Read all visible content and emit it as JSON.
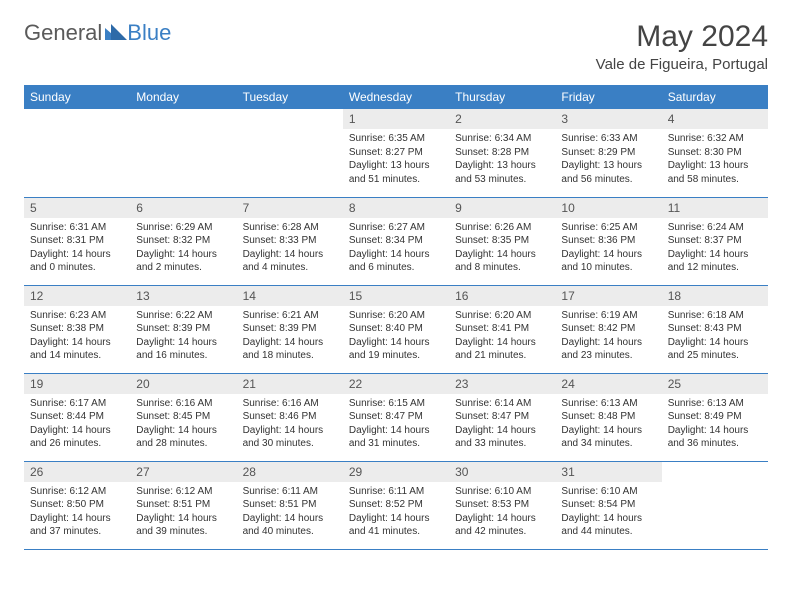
{
  "logo": {
    "text_general": "General",
    "text_blue": "Blue"
  },
  "title": {
    "month": "May 2024",
    "location": "Vale de Figueira, Portugal"
  },
  "colors": {
    "header_bg": "#3a7fc4",
    "header_text": "#ffffff",
    "daynum_bg": "#ececec",
    "text": "#333333",
    "rule": "#3a7fc4"
  },
  "calendar": {
    "day_headers": [
      "Sunday",
      "Monday",
      "Tuesday",
      "Wednesday",
      "Thursday",
      "Friday",
      "Saturday"
    ],
    "weeks": [
      [
        null,
        null,
        null,
        {
          "n": "1",
          "sr": "6:35 AM",
          "ss": "8:27 PM",
          "dl": "13 hours and 51 minutes."
        },
        {
          "n": "2",
          "sr": "6:34 AM",
          "ss": "8:28 PM",
          "dl": "13 hours and 53 minutes."
        },
        {
          "n": "3",
          "sr": "6:33 AM",
          "ss": "8:29 PM",
          "dl": "13 hours and 56 minutes."
        },
        {
          "n": "4",
          "sr": "6:32 AM",
          "ss": "8:30 PM",
          "dl": "13 hours and 58 minutes."
        }
      ],
      [
        {
          "n": "5",
          "sr": "6:31 AM",
          "ss": "8:31 PM",
          "dl": "14 hours and 0 minutes."
        },
        {
          "n": "6",
          "sr": "6:29 AM",
          "ss": "8:32 PM",
          "dl": "14 hours and 2 minutes."
        },
        {
          "n": "7",
          "sr": "6:28 AM",
          "ss": "8:33 PM",
          "dl": "14 hours and 4 minutes."
        },
        {
          "n": "8",
          "sr": "6:27 AM",
          "ss": "8:34 PM",
          "dl": "14 hours and 6 minutes."
        },
        {
          "n": "9",
          "sr": "6:26 AM",
          "ss": "8:35 PM",
          "dl": "14 hours and 8 minutes."
        },
        {
          "n": "10",
          "sr": "6:25 AM",
          "ss": "8:36 PM",
          "dl": "14 hours and 10 minutes."
        },
        {
          "n": "11",
          "sr": "6:24 AM",
          "ss": "8:37 PM",
          "dl": "14 hours and 12 minutes."
        }
      ],
      [
        {
          "n": "12",
          "sr": "6:23 AM",
          "ss": "8:38 PM",
          "dl": "14 hours and 14 minutes."
        },
        {
          "n": "13",
          "sr": "6:22 AM",
          "ss": "8:39 PM",
          "dl": "14 hours and 16 minutes."
        },
        {
          "n": "14",
          "sr": "6:21 AM",
          "ss": "8:39 PM",
          "dl": "14 hours and 18 minutes."
        },
        {
          "n": "15",
          "sr": "6:20 AM",
          "ss": "8:40 PM",
          "dl": "14 hours and 19 minutes."
        },
        {
          "n": "16",
          "sr": "6:20 AM",
          "ss": "8:41 PM",
          "dl": "14 hours and 21 minutes."
        },
        {
          "n": "17",
          "sr": "6:19 AM",
          "ss": "8:42 PM",
          "dl": "14 hours and 23 minutes."
        },
        {
          "n": "18",
          "sr": "6:18 AM",
          "ss": "8:43 PM",
          "dl": "14 hours and 25 minutes."
        }
      ],
      [
        {
          "n": "19",
          "sr": "6:17 AM",
          "ss": "8:44 PM",
          "dl": "14 hours and 26 minutes."
        },
        {
          "n": "20",
          "sr": "6:16 AM",
          "ss": "8:45 PM",
          "dl": "14 hours and 28 minutes."
        },
        {
          "n": "21",
          "sr": "6:16 AM",
          "ss": "8:46 PM",
          "dl": "14 hours and 30 minutes."
        },
        {
          "n": "22",
          "sr": "6:15 AM",
          "ss": "8:47 PM",
          "dl": "14 hours and 31 minutes."
        },
        {
          "n": "23",
          "sr": "6:14 AM",
          "ss": "8:47 PM",
          "dl": "14 hours and 33 minutes."
        },
        {
          "n": "24",
          "sr": "6:13 AM",
          "ss": "8:48 PM",
          "dl": "14 hours and 34 minutes."
        },
        {
          "n": "25",
          "sr": "6:13 AM",
          "ss": "8:49 PM",
          "dl": "14 hours and 36 minutes."
        }
      ],
      [
        {
          "n": "26",
          "sr": "6:12 AM",
          "ss": "8:50 PM",
          "dl": "14 hours and 37 minutes."
        },
        {
          "n": "27",
          "sr": "6:12 AM",
          "ss": "8:51 PM",
          "dl": "14 hours and 39 minutes."
        },
        {
          "n": "28",
          "sr": "6:11 AM",
          "ss": "8:51 PM",
          "dl": "14 hours and 40 minutes."
        },
        {
          "n": "29",
          "sr": "6:11 AM",
          "ss": "8:52 PM",
          "dl": "14 hours and 41 minutes."
        },
        {
          "n": "30",
          "sr": "6:10 AM",
          "ss": "8:53 PM",
          "dl": "14 hours and 42 minutes."
        },
        {
          "n": "31",
          "sr": "6:10 AM",
          "ss": "8:54 PM",
          "dl": "14 hours and 44 minutes."
        },
        null
      ]
    ]
  }
}
